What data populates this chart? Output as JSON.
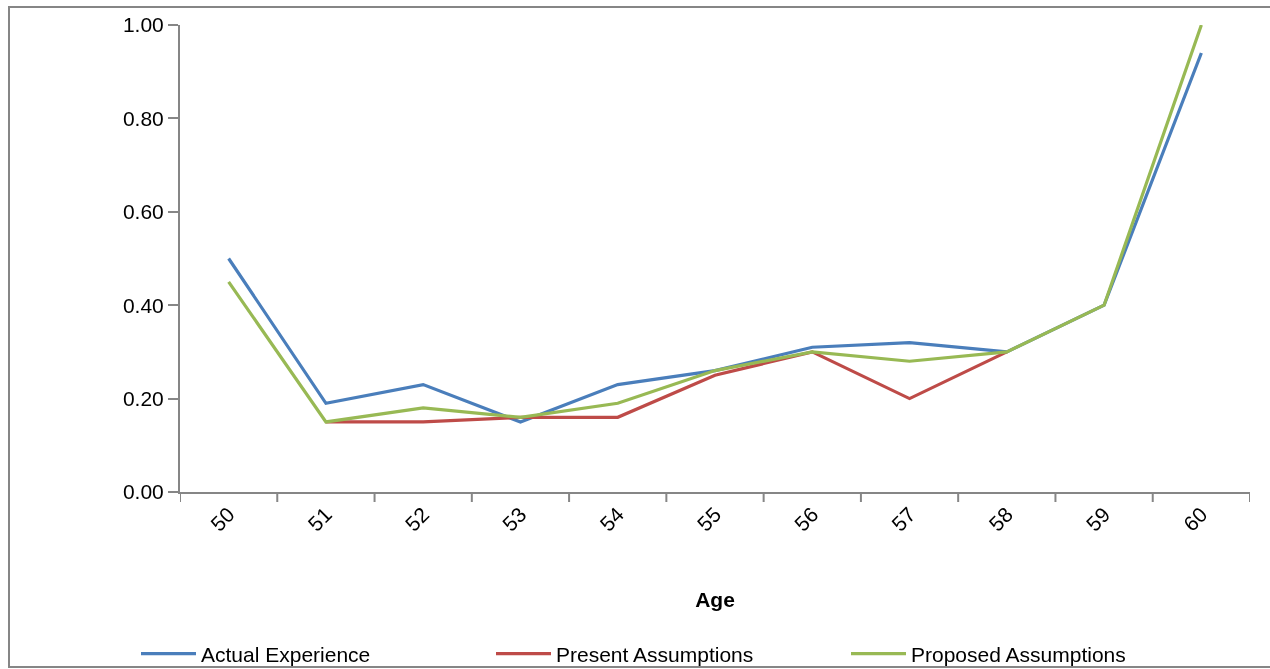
{
  "chart_data": {
    "type": "line",
    "xlabel": "Age",
    "categories": [
      "50",
      "51",
      "52",
      "53",
      "54",
      "55",
      "56",
      "57",
      "58",
      "59",
      "60"
    ],
    "series": [
      {
        "name": "Actual Experience",
        "color": "#4a7ebb",
        "values": [
          0.5,
          0.19,
          0.23,
          0.15,
          0.23,
          0.26,
          0.31,
          0.32,
          0.3,
          0.4,
          0.94
        ]
      },
      {
        "name": "Present Assumptions",
        "color": "#be4b48",
        "values": [
          null,
          0.15,
          0.15,
          0.16,
          0.16,
          0.25,
          0.3,
          0.2,
          0.3,
          null,
          null
        ]
      },
      {
        "name": "Proposed Assumptions",
        "color": "#98b954",
        "values": [
          0.45,
          0.15,
          0.18,
          0.16,
          0.19,
          0.26,
          0.3,
          0.28,
          0.3,
          0.4,
          1.0
        ]
      }
    ],
    "ylim": [
      0,
      1
    ],
    "yticks": [
      {
        "value": 0,
        "label": "0.00"
      },
      {
        "value": 0.2,
        "label": "0.20"
      },
      {
        "value": 0.4,
        "label": "0.40"
      },
      {
        "value": 0.6,
        "label": "0.60"
      },
      {
        "value": 0.8,
        "label": "0.80"
      },
      {
        "value": 1,
        "label": "1.00"
      }
    ],
    "grid": false,
    "legend": "bottom",
    "marker": "none",
    "line_style": "solid"
  }
}
